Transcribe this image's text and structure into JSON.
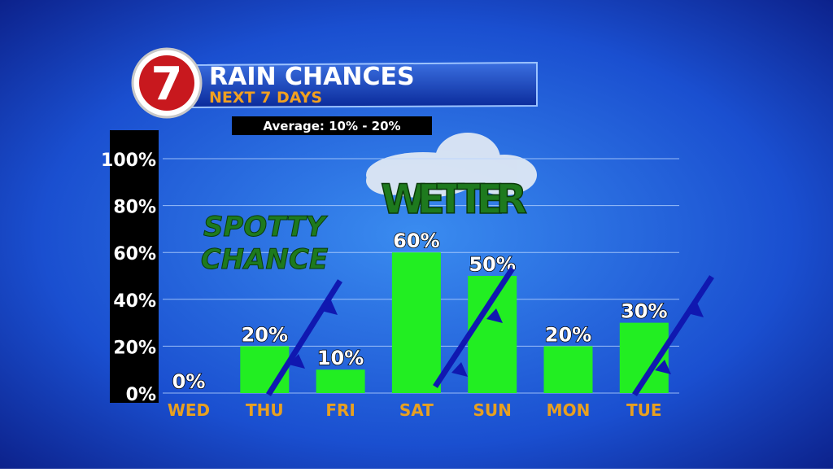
{
  "chart_data": {
    "type": "bar",
    "title": "RAIN CHANCES",
    "subtitle": "NEXT 7 DAYS",
    "logo": "7",
    "annotations": [
      "Average: 10% - 20%",
      "SPOTTY",
      "CHANCE",
      "WETTER"
    ],
    "categories": [
      "WED",
      "THU",
      "FRI",
      "SAT",
      "SUN",
      "MON",
      "TUE"
    ],
    "values": [
      0,
      20,
      10,
      60,
      50,
      20,
      30
    ],
    "value_labels": [
      "0%",
      "20%",
      "10%",
      "60%",
      "50%",
      "20%",
      "30%"
    ],
    "color": "#22ee22",
    "ylim": [
      0,
      100
    ],
    "yticks": [
      {
        "value": 0,
        "label": "0%"
      },
      {
        "value": 20,
        "label": "20%"
      },
      {
        "value": 40,
        "label": "40%"
      },
      {
        "value": 60,
        "label": "60%"
      },
      {
        "value": 80,
        "label": "80%"
      },
      {
        "value": 100,
        "label": "100%"
      }
    ],
    "grid": true
  }
}
